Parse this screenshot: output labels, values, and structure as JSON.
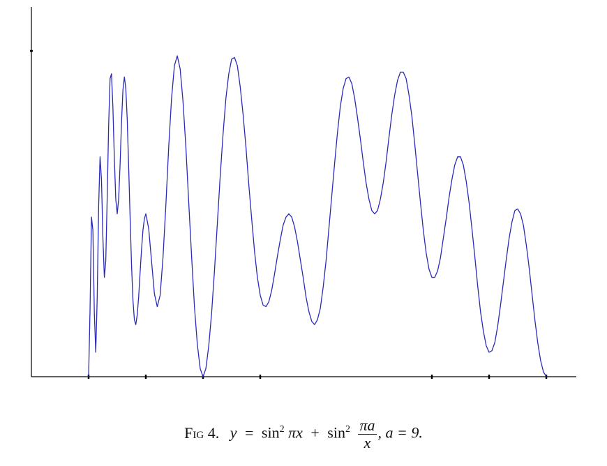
{
  "chart_data": {
    "type": "line",
    "caption": [
      "Fig 4.",
      "y",
      "=",
      "sin",
      "2",
      "πx",
      "+",
      "sin",
      "2",
      "πa",
      "x",
      ", a = 9."
    ],
    "x": [
      1,
      1.025,
      1.05,
      1.075,
      1.1,
      1.125,
      1.15,
      1.175,
      1.2,
      1.225,
      1.25,
      1.275,
      1.3,
      1.325,
      1.35,
      1.375,
      1.4,
      1.425,
      1.45,
      1.475,
      1.5,
      1.525,
      1.55,
      1.575,
      1.6,
      1.625,
      1.65,
      1.675,
      1.7,
      1.725,
      1.75,
      1.775,
      1.8,
      1.825,
      1.85,
      1.875,
      1.9,
      1.925,
      1.95,
      1.975,
      2,
      2.05,
      2.1,
      2.15,
      2.2,
      2.25,
      2.3,
      2.35,
      2.4,
      2.45,
      2.5,
      2.55,
      2.6,
      2.65,
      2.7,
      2.75,
      2.8,
      2.85,
      2.9,
      2.95,
      3,
      3.05,
      3.1,
      3.15,
      3.2,
      3.25,
      3.3,
      3.35,
      3.4,
      3.45,
      3.5,
      3.55,
      3.6,
      3.65,
      3.7,
      3.75,
      3.8,
      3.85,
      3.9,
      3.95,
      4,
      4.05,
      4.1,
      4.15,
      4.2,
      4.25,
      4.3,
      4.35,
      4.4,
      4.45,
      4.5,
      4.55,
      4.6,
      4.65,
      4.7,
      4.75,
      4.8,
      4.85,
      4.9,
      4.95,
      5,
      5.05,
      5.1,
      5.15,
      5.2,
      5.25,
      5.3,
      5.35,
      5.4,
      5.45,
      5.5,
      5.55,
      5.6,
      5.65,
      5.7,
      5.75,
      5.8,
      5.85,
      5.9,
      5.95,
      6,
      6.05,
      6.1,
      6.15,
      6.2,
      6.25,
      6.3,
      6.35,
      6.4,
      6.45,
      6.5,
      6.55,
      6.6,
      6.65,
      6.7,
      6.75,
      6.8,
      6.85,
      6.9,
      6.95,
      7,
      7.05,
      7.1,
      7.15,
      7.2,
      7.25,
      7.3,
      7.35,
      7.4,
      7.45,
      7.5,
      7.55,
      7.6,
      7.65,
      7.7,
      7.75,
      7.8,
      7.85,
      7.9,
      7.95,
      8,
      8.05,
      8.1,
      8.15,
      8.2,
      8.25,
      8.3,
      8.35,
      8.4,
      8.45,
      8.5,
      8.55,
      8.6,
      8.65,
      8.7,
      8.75,
      8.8,
      8.85,
      8.9,
      8.95,
      9
    ],
    "values": [
      0,
      0.41,
      0.98,
      0.9,
      0.39,
      0.15,
      0.48,
      1.04,
      1.35,
      1.21,
      0.85,
      0.61,
      0.71,
      1.1,
      1.54,
      1.83,
      1.86,
      1.65,
      1.34,
      1.09,
      1,
      1.09,
      1.3,
      1.56,
      1.76,
      1.84,
      1.77,
      1.58,
      1.29,
      0.98,
      0.69,
      0.47,
      0.35,
      0.32,
      0.38,
      0.49,
      0.64,
      0.78,
      0.9,
      0.97,
      1,
      0.91,
      0.71,
      0.51,
      0.43,
      0.5,
      0.73,
      1.05,
      1.41,
      1.71,
      1.91,
      1.97,
      1.89,
      1.69,
      1.41,
      1.07,
      0.74,
      0.43,
      0.2,
      0.05,
      0,
      0.05,
      0.19,
      0.39,
      0.65,
      0.94,
      1.23,
      1.49,
      1.71,
      1.86,
      1.95,
      1.96,
      1.91,
      1.78,
      1.61,
      1.41,
      1.18,
      0.97,
      0.77,
      0.61,
      0.5,
      0.44,
      0.43,
      0.46,
      0.53,
      0.63,
      0.74,
      0.84,
      0.93,
      0.98,
      1,
      0.98,
      0.92,
      0.83,
      0.72,
      0.61,
      0.49,
      0.4,
      0.34,
      0.32,
      0.35,
      0.42,
      0.55,
      0.71,
      0.91,
      1.11,
      1.31,
      1.5,
      1.66,
      1.77,
      1.83,
      1.84,
      1.8,
      1.71,
      1.59,
      1.46,
      1.32,
      1.19,
      1.09,
      1.02,
      1,
      1.02,
      1.09,
      1.19,
      1.32,
      1.47,
      1.61,
      1.73,
      1.82,
      1.87,
      1.87,
      1.83,
      1.73,
      1.6,
      1.43,
      1.25,
      1.07,
      0.9,
      0.76,
      0.66,
      0.61,
      0.61,
      0.65,
      0.73,
      0.85,
      0.97,
      1.1,
      1.21,
      1.3,
      1.35,
      1.35,
      1.3,
      1.2,
      1.07,
      0.91,
      0.74,
      0.56,
      0.4,
      0.28,
      0.19,
      0.15,
      0.16,
      0.21,
      0.31,
      0.44,
      0.58,
      0.72,
      0.85,
      0.95,
      1.02,
      1.03,
      1,
      0.93,
      0.81,
      0.67,
      0.51,
      0.35,
      0.21,
      0.1,
      0.03,
      0
    ],
    "color": "#2a2ab8",
    "xlim": [
      0,
      9.5
    ],
    "ylim": [
      0,
      2.27
    ],
    "xticks": [
      1,
      2,
      3,
      4,
      7,
      8,
      9
    ],
    "yticks": [
      2
    ]
  }
}
